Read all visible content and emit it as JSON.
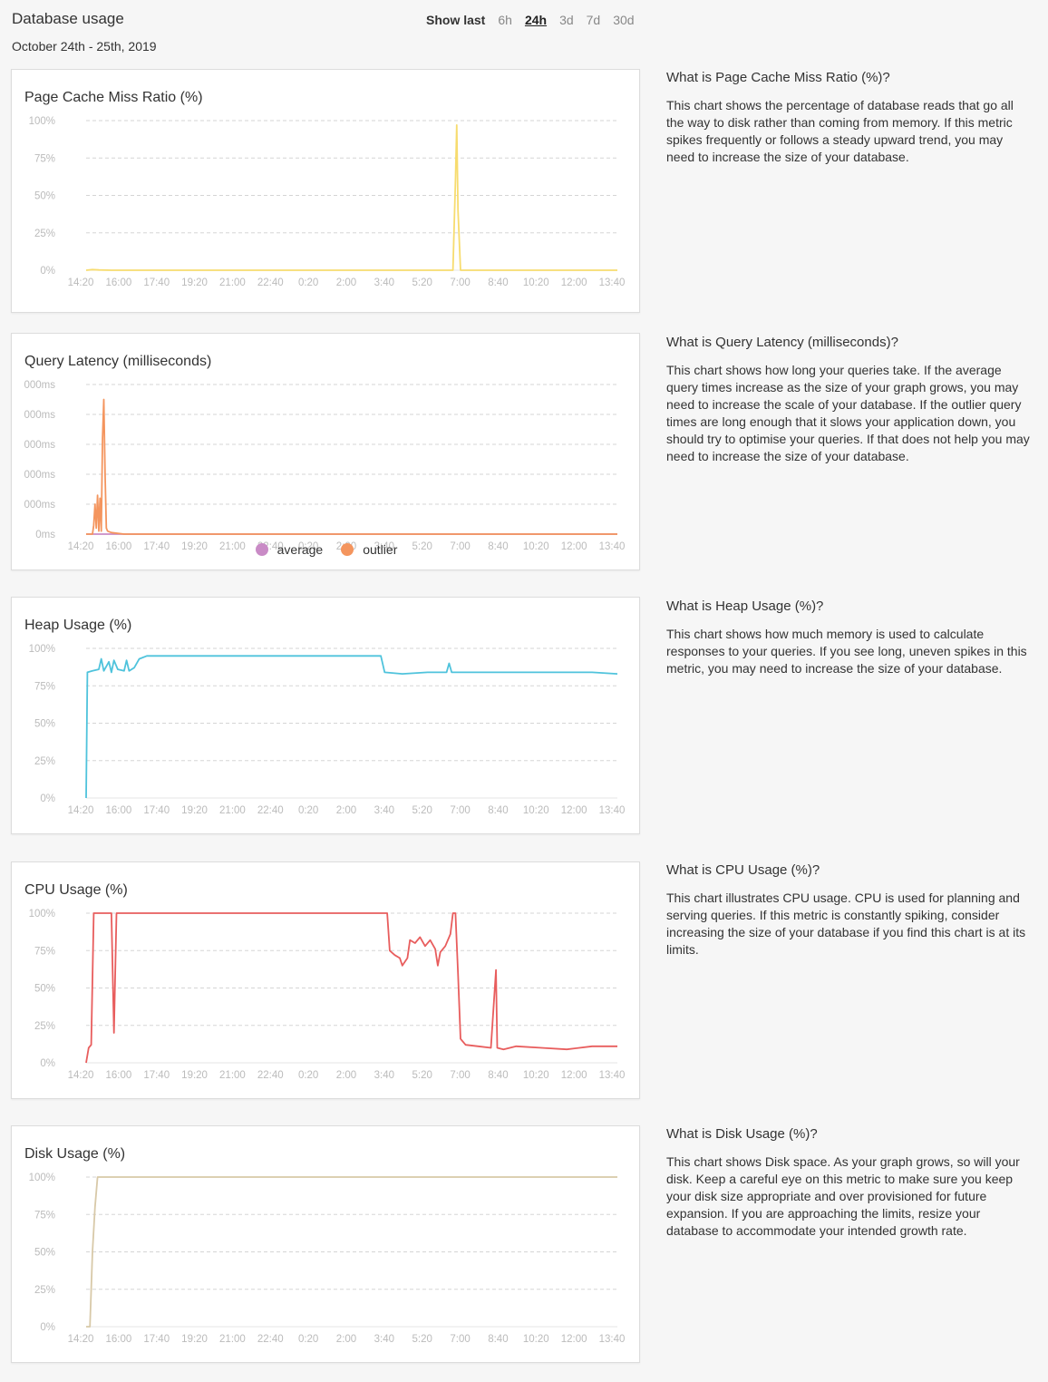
{
  "header": {
    "title": "Database usage",
    "date_range": "October 24th - 25th, 2019",
    "show_last_label": "Show last",
    "options": [
      "6h",
      "24h",
      "3d",
      "7d",
      "30d"
    ],
    "active_option": "24h"
  },
  "x_ticks": [
    "14:20",
    "16:00",
    "17:40",
    "19:20",
    "21:00",
    "22:40",
    "0:20",
    "2:00",
    "3:40",
    "5:20",
    "7:00",
    "8:40",
    "10:20",
    "12:00",
    "13:40"
  ],
  "charts": [
    {
      "title": "Page Cache Miss Ratio (%)",
      "y_ticks": [
        "100%",
        "75%",
        "50%",
        "25%",
        "0%"
      ],
      "info_title": "What is Page Cache Miss Ratio (%)?",
      "info_body": "This chart shows the percentage of database reads that go all the way to disk rather than coming from memory. If this metric spikes frequently or follows a steady upward trend, you may need to increase the size of your database."
    },
    {
      "title": "Query Latency (milliseconds)",
      "y_ticks": [
        "000ms",
        "000ms",
        "000ms",
        "000ms",
        "000ms",
        "0ms"
      ],
      "legend": [
        {
          "label": "average",
          "color": "#c98bc6"
        },
        {
          "label": "outlier",
          "color": "#f4955e"
        }
      ],
      "info_title": "What is Query Latency (milliseconds)?",
      "info_body": "This chart shows how long your queries take. If the average query times increase as the size of your graph grows, you may need to increase the scale of your database. If the outlier query times are long enough that it slows your application down, you should try to optimise your queries. If that does not help you may need to increase the size of your database."
    },
    {
      "title": "Heap Usage (%)",
      "y_ticks": [
        "100%",
        "75%",
        "50%",
        "25%",
        "0%"
      ],
      "info_title": "What is Heap Usage (%)?",
      "info_body": "This chart shows how much memory is used to calculate responses to your queries. If you see long, uneven spikes in this metric, you may need to increase the size of your database."
    },
    {
      "title": "CPU Usage (%)",
      "y_ticks": [
        "100%",
        "75%",
        "50%",
        "25%",
        "0%"
      ],
      "info_title": "What is CPU Usage (%)?",
      "info_body": "This chart illustrates CPU usage. CPU is used for planning and serving queries. If this metric is constantly spiking, consider increasing the size of your database if you find this chart is at its limits."
    },
    {
      "title": "Disk Usage (%)",
      "y_ticks": [
        "100%",
        "75%",
        "50%",
        "25%",
        "0%"
      ],
      "info_title": "What is Disk Usage (%)?",
      "info_body": "This chart shows Disk space. As your graph grows, so will your disk. Keep a careful eye on this metric to make sure you keep your disk size appropriate and over provisioned for future expansion. If you are approaching the limits, resize your database to accommodate your intended growth rate."
    }
  ],
  "chart_data": [
    {
      "type": "line",
      "title": "Page Cache Miss Ratio (%)",
      "ylim": [
        0,
        100
      ],
      "color": "#f7dc6f",
      "series": [
        {
          "values": [
            [
              0,
              0
            ],
            [
              5,
              0.4
            ],
            [
              10,
              0.2
            ],
            [
              20,
              0
            ],
            [
              100,
              0
            ],
            [
              200,
              0
            ],
            [
              290,
              0
            ],
            [
              292,
              60
            ],
            [
              293,
              97
            ],
            [
              294,
              40
            ],
            [
              296,
              0
            ],
            [
              400,
              0
            ],
            [
              420,
              0
            ]
          ]
        }
      ]
    },
    {
      "type": "line",
      "title": "Query Latency (milliseconds)",
      "ylim": [
        0,
        5
      ],
      "series": [
        {
          "name": "average",
          "color": "#c98bc6",
          "values": [
            [
              0,
              0
            ],
            [
              420,
              0
            ]
          ]
        },
        {
          "name": "outlier",
          "color": "#f4955e",
          "values": [
            [
              0,
              0
            ],
            [
              5,
              0
            ],
            [
              6,
              0.3
            ],
            [
              7,
              1.0
            ],
            [
              8,
              0.2
            ],
            [
              9,
              1.3
            ],
            [
              10,
              0.1
            ],
            [
              11,
              1.2
            ],
            [
              12,
              0.1
            ],
            [
              13,
              3.2
            ],
            [
              14,
              4.5
            ],
            [
              15,
              2.0
            ],
            [
              16,
              0.2
            ],
            [
              17,
              0.1
            ],
            [
              20,
              0.05
            ],
            [
              30,
              0
            ],
            [
              420,
              0
            ]
          ]
        }
      ]
    },
    {
      "type": "line",
      "title": "Heap Usage (%)",
      "ylim": [
        0,
        100
      ],
      "color": "#4fc3dc",
      "series": [
        {
          "values": [
            [
              0,
              0
            ],
            [
              1,
              84
            ],
            [
              5,
              85
            ],
            [
              10,
              86
            ],
            [
              12,
              93
            ],
            [
              14,
              85
            ],
            [
              18,
              91
            ],
            [
              20,
              84
            ],
            [
              22,
              92
            ],
            [
              25,
              86
            ],
            [
              30,
              85
            ],
            [
              32,
              92
            ],
            [
              34,
              85
            ],
            [
              38,
              87
            ],
            [
              42,
              93
            ],
            [
              48,
              95
            ],
            [
              60,
              95
            ],
            [
              100,
              95
            ],
            [
              150,
              95
            ],
            [
              200,
              95
            ],
            [
              233,
              95
            ],
            [
              236,
              84
            ],
            [
              250,
              83
            ],
            [
              270,
              84
            ],
            [
              285,
              84
            ],
            [
              287,
              90
            ],
            [
              289,
              84
            ],
            [
              300,
              84
            ],
            [
              330,
              84
            ],
            [
              360,
              84
            ],
            [
              400,
              84
            ],
            [
              420,
              83
            ]
          ]
        }
      ]
    },
    {
      "type": "line",
      "title": "CPU Usage (%)",
      "ylim": [
        0,
        100
      ],
      "color": "#e85d5d",
      "series": [
        {
          "values": [
            [
              0,
              0
            ],
            [
              2,
              10
            ],
            [
              4,
              12
            ],
            [
              6,
              100
            ],
            [
              20,
              100
            ],
            [
              22,
              20
            ],
            [
              24,
              100
            ],
            [
              100,
              100
            ],
            [
              200,
              100
            ],
            [
              238,
              100
            ],
            [
              240,
              75
            ],
            [
              244,
              72
            ],
            [
              248,
              70
            ],
            [
              250,
              65
            ],
            [
              254,
              70
            ],
            [
              256,
              82
            ],
            [
              260,
              80
            ],
            [
              264,
              84
            ],
            [
              268,
              78
            ],
            [
              272,
              82
            ],
            [
              276,
              76
            ],
            [
              278,
              65
            ],
            [
              280,
              74
            ],
            [
              284,
              78
            ],
            [
              288,
              86
            ],
            [
              290,
              100
            ],
            [
              292,
              100
            ],
            [
              294,
              60
            ],
            [
              296,
              16
            ],
            [
              300,
              12
            ],
            [
              310,
              11
            ],
            [
              320,
              10
            ],
            [
              324,
              62
            ],
            [
              325,
              10
            ],
            [
              330,
              9
            ],
            [
              340,
              11
            ],
            [
              360,
              10
            ],
            [
              380,
              9
            ],
            [
              400,
              11
            ],
            [
              420,
              11
            ]
          ]
        }
      ]
    },
    {
      "type": "line",
      "title": "Disk Usage (%)",
      "ylim": [
        0,
        100
      ],
      "color": "#d8c9a8",
      "series": [
        {
          "values": [
            [
              0,
              0
            ],
            [
              3,
              0
            ],
            [
              5,
              50
            ],
            [
              7,
              80
            ],
            [
              9,
              100
            ],
            [
              100,
              100
            ],
            [
              200,
              100
            ],
            [
              300,
              100
            ],
            [
              420,
              100
            ]
          ]
        }
      ]
    }
  ]
}
